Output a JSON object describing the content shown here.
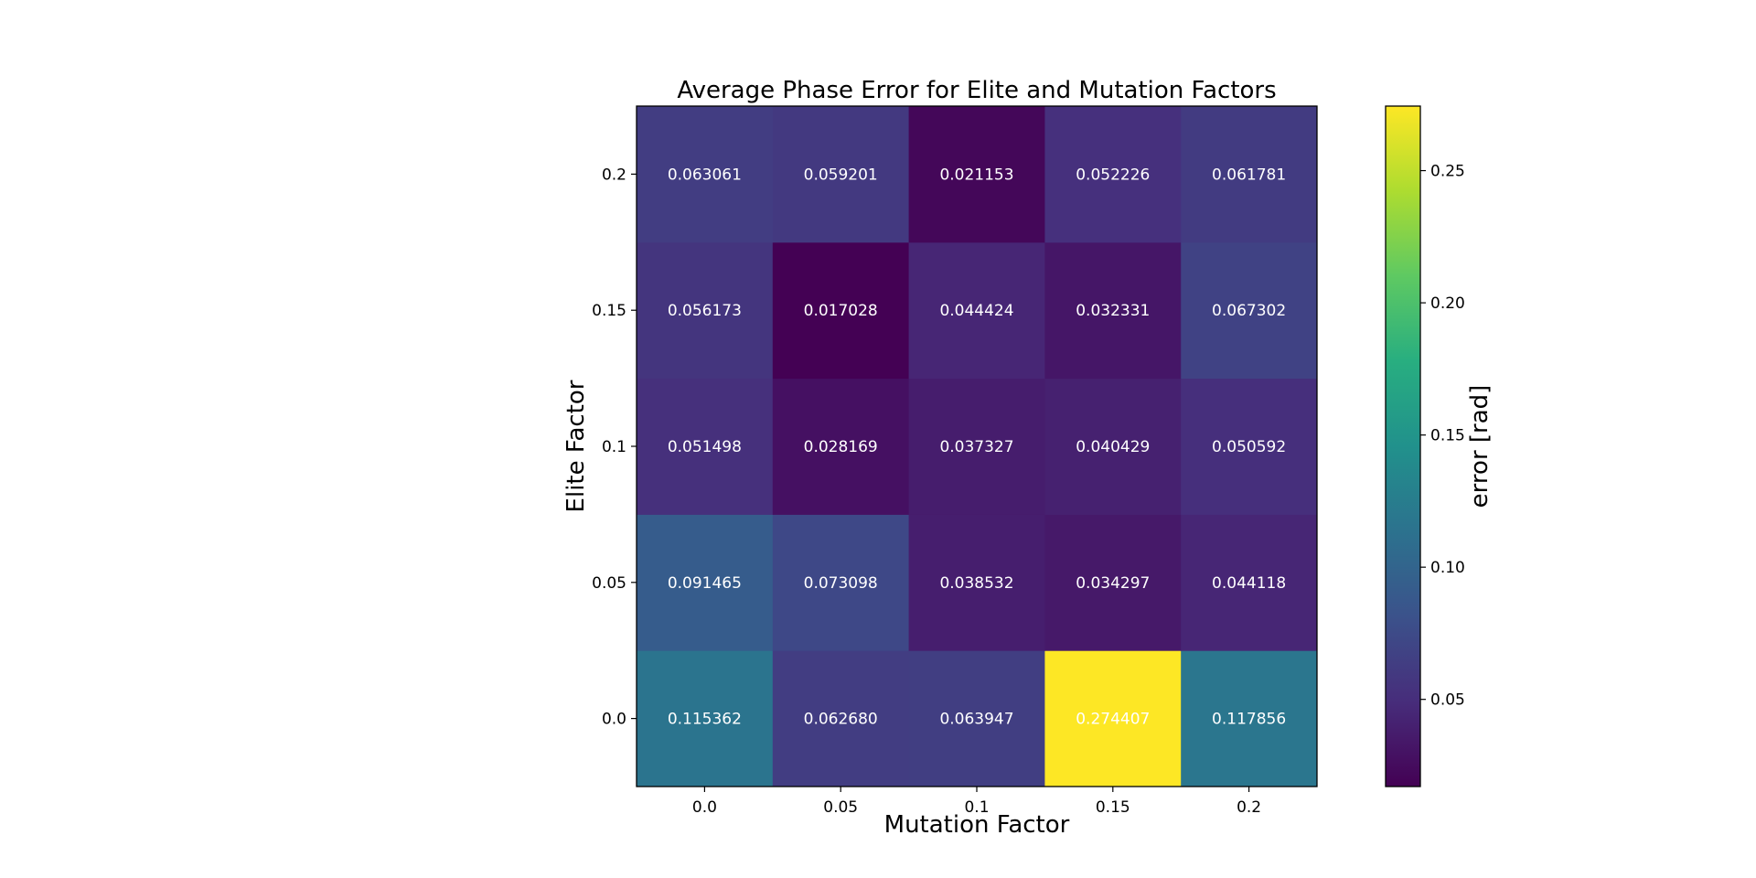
{
  "chart_data": {
    "type": "heatmap",
    "title": "Average Phase Error for Elite and Mutation Factors",
    "xlabel": "Mutation Factor",
    "ylabel": "Elite Factor",
    "x_categories": [
      "0.0",
      "0.05",
      "0.1",
      "0.15",
      "0.2"
    ],
    "y_categories": [
      "0.0",
      "0.05",
      "0.1",
      "0.15",
      "0.2"
    ],
    "values": [
      [
        0.115362,
        0.06268,
        0.063947,
        0.274407,
        0.117856
      ],
      [
        0.091465,
        0.073098,
        0.038532,
        0.034297,
        0.044118
      ],
      [
        0.051498,
        0.028169,
        0.037327,
        0.040429,
        0.050592
      ],
      [
        0.056173,
        0.017028,
        0.044424,
        0.032331,
        0.067302
      ],
      [
        0.063061,
        0.059201,
        0.021153,
        0.052226,
        0.061781
      ]
    ],
    "value_labels": [
      [
        "0.115362",
        "0.062680",
        "0.063947",
        "0.274407",
        "0.117856"
      ],
      [
        "0.091465",
        "0.073098",
        "0.038532",
        "0.034297",
        "0.044118"
      ],
      [
        "0.051498",
        "0.028169",
        "0.037327",
        "0.040429",
        "0.050592"
      ],
      [
        "0.056173",
        "0.017028",
        "0.044424",
        "0.032331",
        "0.067302"
      ],
      [
        "0.063061",
        "0.059201",
        "0.021153",
        "0.052226",
        "0.061781"
      ]
    ],
    "colormap": "viridis",
    "colorbar": {
      "label": "error [rad]",
      "range": [
        0.017028,
        0.274407
      ],
      "ticks": [
        0.05,
        0.1,
        0.15,
        0.2,
        0.25
      ],
      "tick_labels": [
        "0.05",
        "0.10",
        "0.15",
        "0.20",
        "0.25"
      ]
    },
    "grid": false,
    "legend": "none",
    "annotation_color": "#ffffff"
  }
}
